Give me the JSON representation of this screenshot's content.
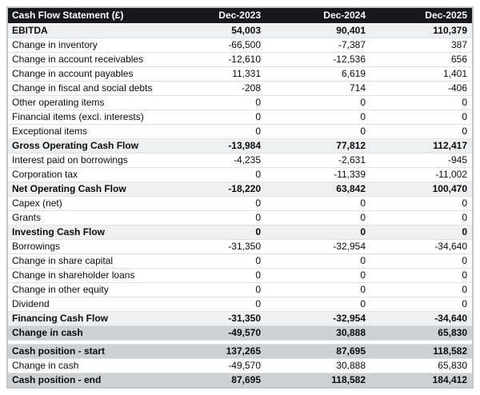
{
  "chart_data": {
    "type": "table",
    "title": "Cash Flow Statement (£)",
    "columns": [
      "Dec-2023",
      "Dec-2024",
      "Dec-2025"
    ],
    "rows": [
      {
        "label": "EBITDA",
        "values": [
          "54,003",
          "90,401",
          "110,379"
        ],
        "style": "subtotal"
      },
      {
        "label": "Change in inventory",
        "values": [
          "-66,500",
          "-7,387",
          "387"
        ],
        "style": "normal"
      },
      {
        "label": "Change in account receivables",
        "values": [
          "-12,610",
          "-12,536",
          "656"
        ],
        "style": "normal"
      },
      {
        "label": "Change in account payables",
        "values": [
          "11,331",
          "6,619",
          "1,401"
        ],
        "style": "normal"
      },
      {
        "label": "Change in fiscal and social debts",
        "values": [
          "-208",
          "714",
          "-406"
        ],
        "style": "normal"
      },
      {
        "label": "Other operating items",
        "values": [
          "0",
          "0",
          "0"
        ],
        "style": "normal"
      },
      {
        "label": "Financial items (excl. interests)",
        "values": [
          "0",
          "0",
          "0"
        ],
        "style": "normal"
      },
      {
        "label": "Exceptional items",
        "values": [
          "0",
          "0",
          "0"
        ],
        "style": "normal"
      },
      {
        "label": "Gross Operating Cash Flow",
        "values": [
          "-13,984",
          "77,812",
          "112,417"
        ],
        "style": "subtotal"
      },
      {
        "label": "Interest paid on borrowings",
        "values": [
          "-4,235",
          "-2,631",
          "-945"
        ],
        "style": "normal"
      },
      {
        "label": "Corporation tax",
        "values": [
          "0",
          "-11,339",
          "-11,002"
        ],
        "style": "normal"
      },
      {
        "label": "Net Operating Cash Flow",
        "values": [
          "-18,220",
          "63,842",
          "100,470"
        ],
        "style": "subtotal"
      },
      {
        "label": "Capex (net)",
        "values": [
          "0",
          "0",
          "0"
        ],
        "style": "normal"
      },
      {
        "label": "Grants",
        "values": [
          "0",
          "0",
          "0"
        ],
        "style": "normal"
      },
      {
        "label": "Investing Cash Flow",
        "values": [
          "0",
          "0",
          "0"
        ],
        "style": "subtotal"
      },
      {
        "label": "Borrowings",
        "values": [
          "-31,350",
          "-32,954",
          "-34,640"
        ],
        "style": "normal"
      },
      {
        "label": "Change in share capital",
        "values": [
          "0",
          "0",
          "0"
        ],
        "style": "normal"
      },
      {
        "label": "Change in shareholder loans",
        "values": [
          "0",
          "0",
          "0"
        ],
        "style": "normal"
      },
      {
        "label": "Change in other equity",
        "values": [
          "0",
          "0",
          "0"
        ],
        "style": "normal"
      },
      {
        "label": "Dividend",
        "values": [
          "0",
          "0",
          "0"
        ],
        "style": "normal"
      },
      {
        "label": "Financing Cash Flow",
        "values": [
          "-31,350",
          "-32,954",
          "-34,640"
        ],
        "style": "subtotal"
      },
      {
        "label": "Change in cash",
        "values": [
          "-49,570",
          "30,888",
          "65,830"
        ],
        "style": "total"
      },
      {
        "style": "separator"
      },
      {
        "label": "Cash position - start",
        "values": [
          "137,265",
          "87,695",
          "118,582"
        ],
        "style": "total"
      },
      {
        "label": "Change in cash",
        "values": [
          "-49,570",
          "30,888",
          "65,830"
        ],
        "style": "normal"
      },
      {
        "label": "Cash position - end",
        "values": [
          "87,695",
          "118,582",
          "184,412"
        ],
        "style": "total"
      }
    ],
    "layout": {
      "value_alignment": "right",
      "label_alignment": "left",
      "grid": "horizontal-only",
      "legend": "none"
    },
    "colors": {
      "header_background": "#17191d",
      "header_text": "#ffffff",
      "subtotal_row_background": "#edeff1",
      "total_row_background": "#ccd1d6",
      "row_border": "#dfe2e4",
      "outer_border": "#c3c7ca",
      "body_text": "#0b0c0d"
    }
  }
}
